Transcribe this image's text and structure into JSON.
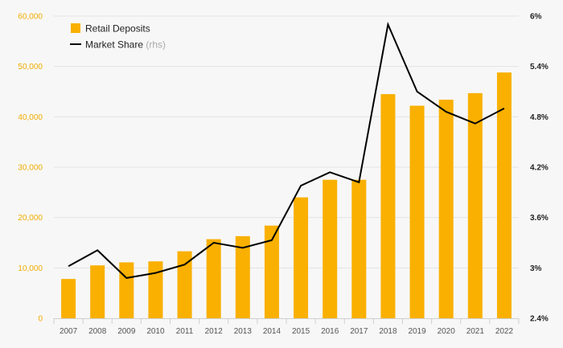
{
  "chart_data": {
    "type": "bar",
    "categories": [
      "2007",
      "2008",
      "2009",
      "2010",
      "2011",
      "2012",
      "2013",
      "2014",
      "2015",
      "2016",
      "2017",
      "2018",
      "2019",
      "2020",
      "2021",
      "2022"
    ],
    "series": [
      {
        "name": "Retail Deposits",
        "type": "bar",
        "axis": "left",
        "values": [
          7800,
          10500,
          11100,
          11300,
          13300,
          15700,
          16300,
          18400,
          24000,
          27500,
          27500,
          44500,
          42200,
          43400,
          44700,
          48800
        ]
      },
      {
        "name": "Market Share",
        "name_suffix": "(rhs)",
        "type": "line",
        "axis": "right",
        "values": [
          3.02,
          3.21,
          2.88,
          2.94,
          3.04,
          3.3,
          3.24,
          3.33,
          3.98,
          4.14,
          4.02,
          5.9,
          5.1,
          4.86,
          4.72,
          4.9
        ]
      }
    ],
    "y_left": {
      "range": [
        0,
        60000
      ],
      "ticks": [
        0,
        10000,
        20000,
        30000,
        40000,
        50000,
        60000
      ],
      "tick_labels": [
        "0",
        "10,000",
        "20,000",
        "30,000",
        "40,000",
        "50,000",
        "60,000"
      ]
    },
    "y_right": {
      "range": [
        2.4,
        6.0
      ],
      "ticks": [
        2.4,
        3.0,
        3.6,
        4.2,
        4.8,
        5.4,
        6.0
      ],
      "tick_labels": [
        "2.4%",
        "3%",
        "3.6%",
        "4.2%",
        "4.8%",
        "5.4%",
        "6%"
      ]
    },
    "grid": true,
    "legend_position": "top-left",
    "colors": {
      "bar": "#f9b000",
      "line": "#000000",
      "grid": "#e3e3e3",
      "left_tick": "#f0ad00",
      "right_tick": "#222222",
      "background": "#f7f7f7"
    }
  }
}
